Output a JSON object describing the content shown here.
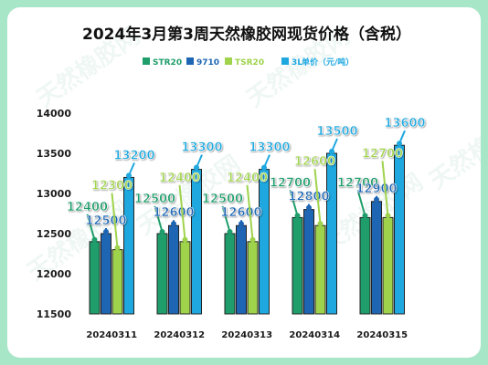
{
  "chart_data": {
    "type": "bar",
    "title": "2024年3月第3周天然橡胶网现货价格（含税）",
    "unit_label": "单价（元/吨）",
    "categories": [
      "20240311",
      "20240312",
      "20240313",
      "20240314",
      "20240315"
    ],
    "series": [
      {
        "name": "STR20",
        "color": "#1f9e6b",
        "values": [
          12400,
          12500,
          12500,
          12700,
          12700
        ]
      },
      {
        "name": "9710",
        "color": "#1e66b4",
        "values": [
          12500,
          12600,
          12600,
          12800,
          12900
        ]
      },
      {
        "name": "TSR20",
        "color": "#9fd34c",
        "values": [
          12300,
          12400,
          12400,
          12600,
          12700
        ]
      },
      {
        "name": "3L",
        "color": "#1fa8e0",
        "values": [
          13200,
          13300,
          13300,
          13500,
          13600
        ]
      }
    ],
    "ylim": [
      11500,
      14000
    ],
    "yticks": [
      11500,
      12000,
      12500,
      13000,
      13500,
      14000
    ],
    "grid": false,
    "legend_position": "top"
  },
  "watermark": "天然橡胶网"
}
